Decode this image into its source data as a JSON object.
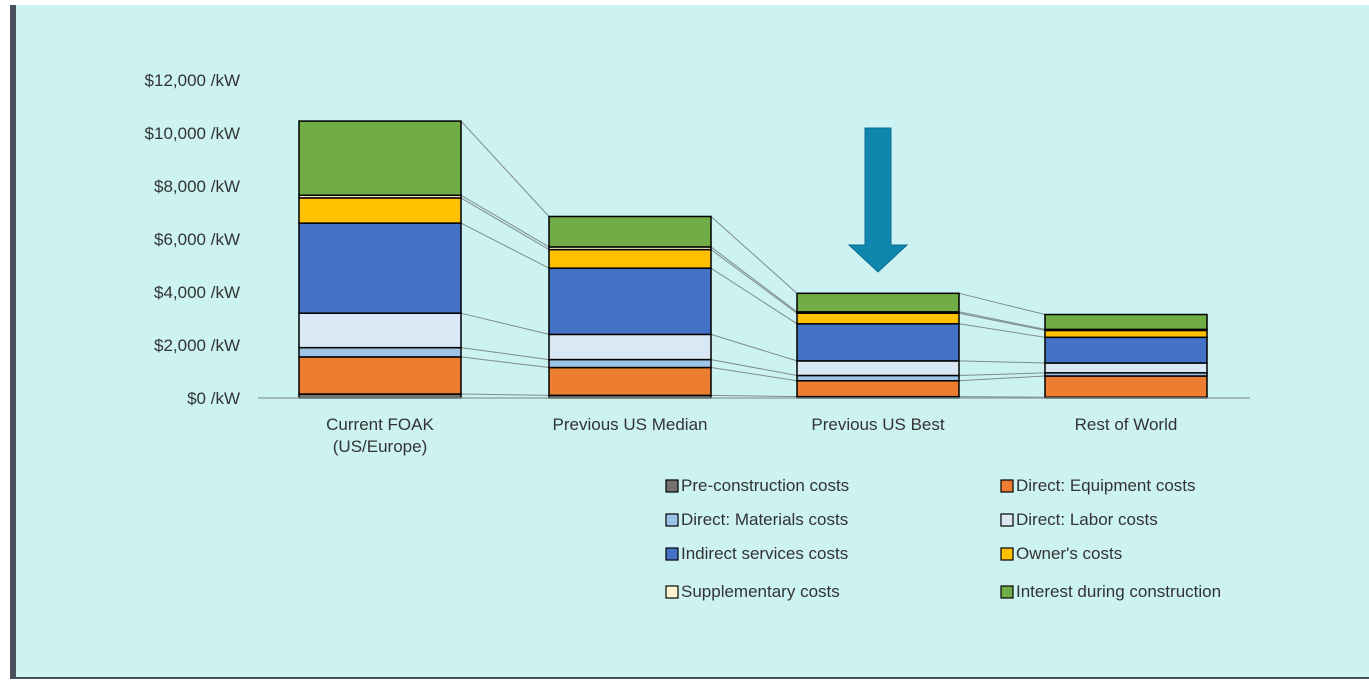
{
  "chart_data": {
    "type": "bar",
    "stacked": true,
    "categories": [
      "Current FOAK\n(US/Europe)",
      "Previous US Median",
      "Previous US Best",
      "Rest of World"
    ],
    "ylim": [
      0,
      12000
    ],
    "y_ticks": [
      "$0 /kW",
      "$2,000 /kW",
      "$4,000 /kW",
      "$6,000 /kW",
      "$8,000 /kW",
      "$10,000 /kW",
      "$12,000 /kW"
    ],
    "y_tick_values": [
      0,
      2000,
      4000,
      6000,
      8000,
      10000,
      12000
    ],
    "series": [
      {
        "name": "Pre-construction costs",
        "color": "#767171",
        "values": [
          150,
          100,
          50,
          30
        ]
      },
      {
        "name": "Direct: Equipment costs",
        "color": "#ed7d31",
        "values": [
          1400,
          1050,
          600,
          800
        ]
      },
      {
        "name": "Direct: Materials costs",
        "color": "#9dc3e6",
        "values": [
          350,
          300,
          200,
          120
        ]
      },
      {
        "name": "Direct: Labor costs",
        "color": "#dae8f5",
        "values": [
          1300,
          950,
          550,
          370
        ]
      },
      {
        "name": "Indirect services costs",
        "color": "#4472c4",
        "values": [
          3400,
          2500,
          1400,
          970
        ]
      },
      {
        "name": "Owner's costs",
        "color": "#ffc000",
        "values": [
          950,
          700,
          400,
          260
        ]
      },
      {
        "name": "Supplementary costs",
        "color": "#fff2cc",
        "values": [
          100,
          100,
          50,
          40
        ]
      },
      {
        "name": "Interest during construction",
        "color": "#70ad47",
        "values": [
          2800,
          1150,
          700,
          560
        ]
      }
    ],
    "legend_position": "bottom-right",
    "grid": false,
    "annotation": "down-arrow-over-previous-us-best"
  },
  "colors": {
    "background": "#ccf2f2",
    "frame": "#47505c",
    "arrow": "#0e86ad",
    "connector": "#7f8c8c"
  }
}
